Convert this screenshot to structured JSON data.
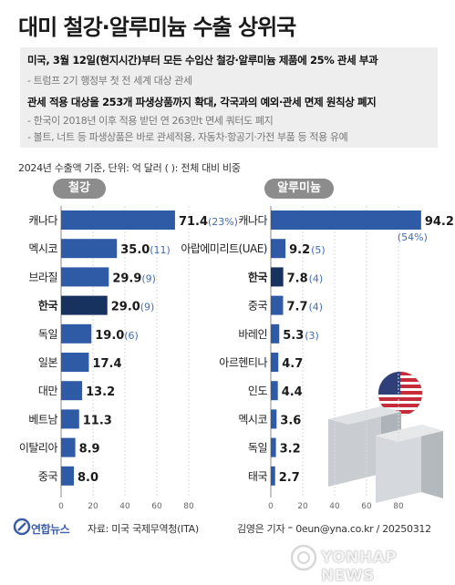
{
  "title": "대미 철강·알루미늄 수출 상위국",
  "info": {
    "line1": "미국, 3월 12일(현지시간)부터 모든 수입산 철강·알루미늄 제품에 25% 관세 부과",
    "line2": "- 트럼프 2기 행정부 첫 전 세계 대상 관세",
    "line3": "관세 적용 대상을 253개 파생상품까지 확대, 각국과의 예외·관세 면제 원칙상 폐지",
    "line4": "- 한국이 2018년 이후 적용 받던 연 263만t 면세 쿼터도 폐지",
    "line5": "- 볼트, 너트 등 파생상품은 바로 관세적용, 자동차·항공기·가전 부품 등 적용 유예"
  },
  "meta": "2024년 수출액 기준, 단위: 억 달러  ( ): 전체 대비 비중",
  "steel_label": "철강",
  "alu_label": "알루미늄",
  "source": "자료: 미국 국제무역청(ITA)",
  "credit": "김영은 기자 ⁼ 0eun@yna.co.kr / 20250312",
  "logo": "연합뉴스",
  "watermark": "YONHAP NEWS",
  "colors": {
    "bar": "#2f5aa5",
    "highlight": "#17325e",
    "accent": "#3f6db5"
  },
  "chart_data": [
    {
      "type": "bar",
      "orientation": "horizontal",
      "title": "철강",
      "categories": [
        "캐나다",
        "멕시코",
        "브라질",
        "한국",
        "독일",
        "일본",
        "대만",
        "베트남",
        "이탈리아",
        "중국"
      ],
      "values": [
        71.4,
        35.0,
        29.9,
        29.0,
        19.0,
        17.4,
        13.2,
        11.3,
        8.9,
        8.0
      ],
      "value_labels": [
        "71.4",
        "35.0",
        "29.9",
        "29.0",
        "19.0",
        "17.4",
        "13.2",
        "11.3",
        "8.9",
        "8.0"
      ],
      "shares": [
        "(23%)",
        "(11)",
        "(9)",
        "(9)",
        "(6)",
        "",
        "",
        "",
        "",
        ""
      ],
      "highlight": "한국",
      "xlim": [
        0,
        100
      ],
      "xticks": [
        0,
        20,
        40,
        60,
        80
      ]
    },
    {
      "type": "bar",
      "orientation": "horizontal",
      "title": "알루미늄",
      "categories": [
        "캐나다",
        "아랍에미리트(UAE)",
        "한국",
        "중국",
        "바레인",
        "아르헨티나",
        "인도",
        "멕시코",
        "독일",
        "태국"
      ],
      "values": [
        94.2,
        9.2,
        7.8,
        7.7,
        5.3,
        4.7,
        4.4,
        3.6,
        3.2,
        2.7
      ],
      "value_labels": [
        "94.2",
        "9.2",
        "7.8",
        "7.7",
        "5.3",
        "4.7",
        "4.4",
        "3.6",
        "3.2",
        "2.7"
      ],
      "shares": [
        "(54%)",
        "(5)",
        "(4)",
        "(4)",
        "(3)",
        "",
        "",
        "",
        "",
        ""
      ],
      "highlight": "한국",
      "xlim": [
        0,
        100
      ],
      "xticks": [
        0,
        20,
        40,
        60,
        80
      ]
    }
  ]
}
